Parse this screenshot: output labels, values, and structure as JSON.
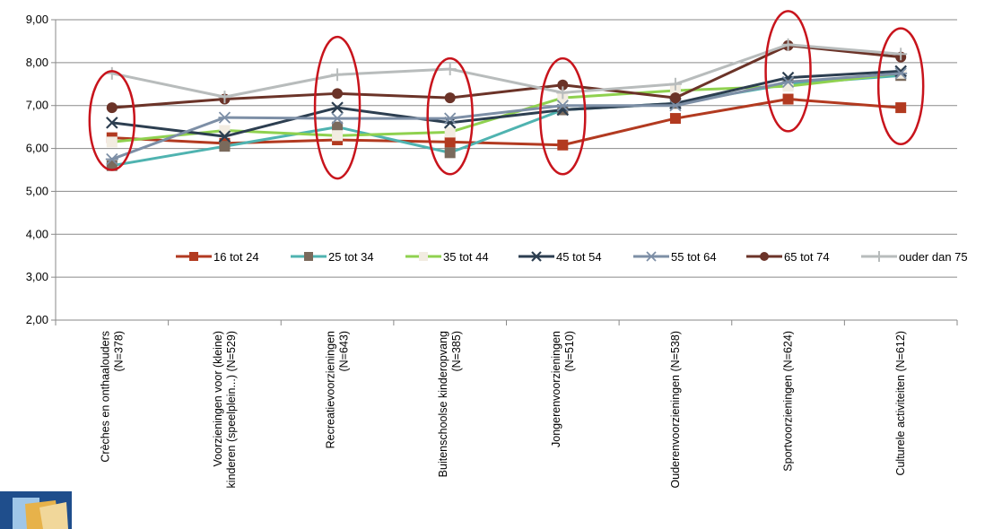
{
  "chart_data": {
    "type": "line",
    "title": "",
    "xlabel": "",
    "ylabel": "",
    "ylim": [
      2,
      9
    ],
    "y_ticks": [
      "2,00",
      "3,00",
      "4,00",
      "5,00",
      "6,00",
      "7,00",
      "8,00",
      "9,00"
    ],
    "grid": true,
    "legend_position": "inside-center-right",
    "categories": [
      [
        "Crèches en onthaalouders",
        "(N=378)"
      ],
      [
        "Voorzieningen voor (kleine)",
        "kinderen (speelplein...) (N=529)"
      ],
      [
        "Recreatievoorzieningen",
        "(N=643)"
      ],
      [
        "Buitenschoolse kinderopvang",
        "(N=385)"
      ],
      [
        "Jongerenvoorzieningen",
        "(N=510)"
      ],
      [
        "Ouderenvoorzieningen (N=538)"
      ],
      [
        "Sportvoorzieningen (N=624)"
      ],
      [
        "Culturele activiteiten (N=612)"
      ]
    ],
    "series": [
      {
        "name": "16 tot 24",
        "color": "#b23a20",
        "marker": "square",
        "values": [
          6.25,
          6.12,
          6.2,
          6.15,
          6.08,
          6.7,
          7.15,
          6.95
        ]
      },
      {
        "name": "25 tot 34",
        "color": "#4fb3b0",
        "marker": "square-brown",
        "values": [
          5.6,
          6.05,
          6.5,
          5.9,
          6.9,
          7.05,
          7.5,
          7.7
        ]
      },
      {
        "name": "35 tot 44",
        "color": "#8fd14f",
        "marker": "square-light",
        "values": [
          6.15,
          6.42,
          6.3,
          6.38,
          7.18,
          7.35,
          7.45,
          7.75
        ]
      },
      {
        "name": "45 tot 54",
        "color": "#2c3e50",
        "marker": "x",
        "values": [
          6.6,
          6.28,
          6.95,
          6.6,
          6.9,
          7.05,
          7.65,
          7.8
        ]
      },
      {
        "name": "55 tot 64",
        "color": "#7d8fa6",
        "marker": "star",
        "values": [
          5.75,
          6.72,
          6.7,
          6.7,
          7.0,
          7.0,
          7.55,
          7.75
        ]
      },
      {
        "name": "65 tot 74",
        "color": "#6b3328",
        "marker": "circle",
        "values": [
          6.95,
          7.15,
          7.28,
          7.18,
          7.48,
          7.18,
          8.4,
          8.13
        ]
      },
      {
        "name": "ouder dan 75",
        "color": "#b8bcbc",
        "marker": "plus",
        "values": [
          7.75,
          7.2,
          7.72,
          7.85,
          7.3,
          7.5,
          8.42,
          8.2
        ]
      }
    ],
    "annotations": "red ellipses around categories 1, 3, 4, 5, 7 and 8"
  }
}
